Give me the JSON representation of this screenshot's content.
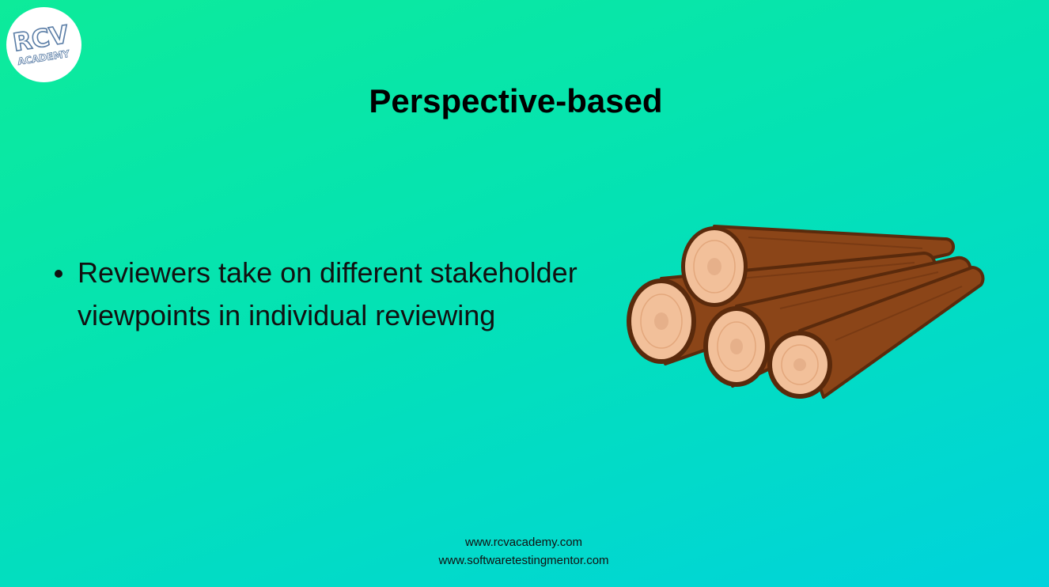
{
  "logo": {
    "line1": "RCV",
    "line2": "ACADEMY"
  },
  "slide": {
    "title": "Perspective-based",
    "bullets": [
      "Reviewers take on different stakeholder viewpoints in individual reviewing"
    ]
  },
  "illustration": {
    "icon": "wooden-logs-icon"
  },
  "footer": {
    "line1": "www.rcvacademy.com",
    "line2": "www.softwaretestingmentor.com"
  },
  "colors": {
    "background_top": "#0deb9a",
    "background_bottom": "#00d3dc",
    "log_bark": "#8b4518",
    "log_bark_dark": "#5a2a0c",
    "log_end": "#f2c09a"
  }
}
